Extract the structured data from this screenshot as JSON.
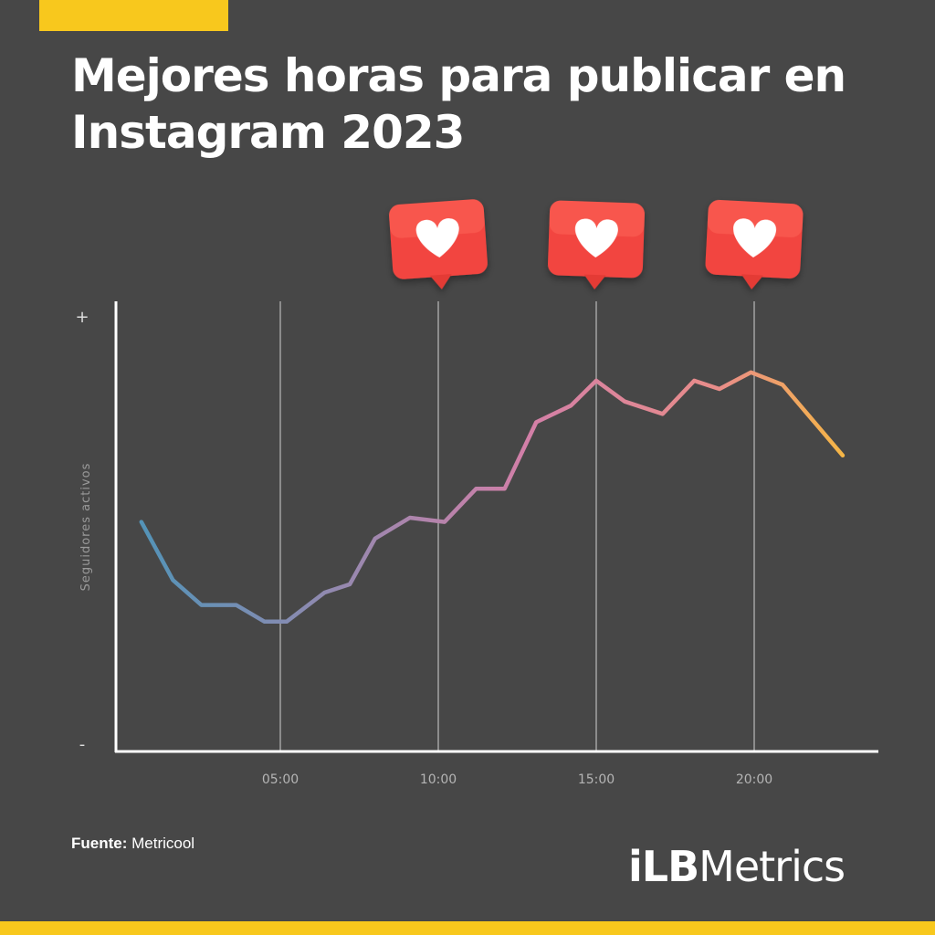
{
  "title": "Mejores horas para publicar en Instagram 2023",
  "source": {
    "label": "Fuente:",
    "value": "Metricool"
  },
  "logo": {
    "first": "iLB",
    "second": "Metrics"
  },
  "colors": {
    "accent": "#f8c81d",
    "background": "#474747",
    "heart_bubble": "#f2453f",
    "line_start": "#4f94b8",
    "line_mid": "#d27fa8",
    "line_end": "#f6b843"
  },
  "icons": [
    "heart-bubble-icon",
    "heart-bubble-icon",
    "heart-bubble-icon"
  ],
  "chart_data": {
    "type": "line",
    "ylabel": "Seguidores activos",
    "y_top_symbol": "+",
    "y_bottom_symbol": "-",
    "ylim": [
      0,
      100
    ],
    "xlim": [
      0,
      24
    ],
    "xticks": [
      {
        "x": 5,
        "label": "05:00"
      },
      {
        "x": 10,
        "label": "10:00"
      },
      {
        "x": 15,
        "label": "15:00"
      },
      {
        "x": 20,
        "label": "20:00"
      }
    ],
    "grid": "vertical at ticks",
    "highlighted_hours": [
      "10:00",
      "15:00",
      "20:00"
    ],
    "series": [
      {
        "x": [
          0.6,
          1.6,
          2.5,
          3.6,
          4.5,
          5.2,
          6.4,
          7.2,
          8.0,
          9.1,
          10.2,
          11.2,
          12.1,
          13.1,
          14.2,
          15.0,
          15.9,
          17.1,
          18.1,
          18.9,
          19.9,
          20.9,
          22.8
        ],
        "y": [
          48,
          34,
          28,
          28,
          24,
          24,
          31,
          33,
          44,
          49,
          48,
          56,
          56,
          72,
          76,
          82,
          77,
          74,
          82,
          80,
          84,
          81,
          64
        ]
      }
    ]
  }
}
